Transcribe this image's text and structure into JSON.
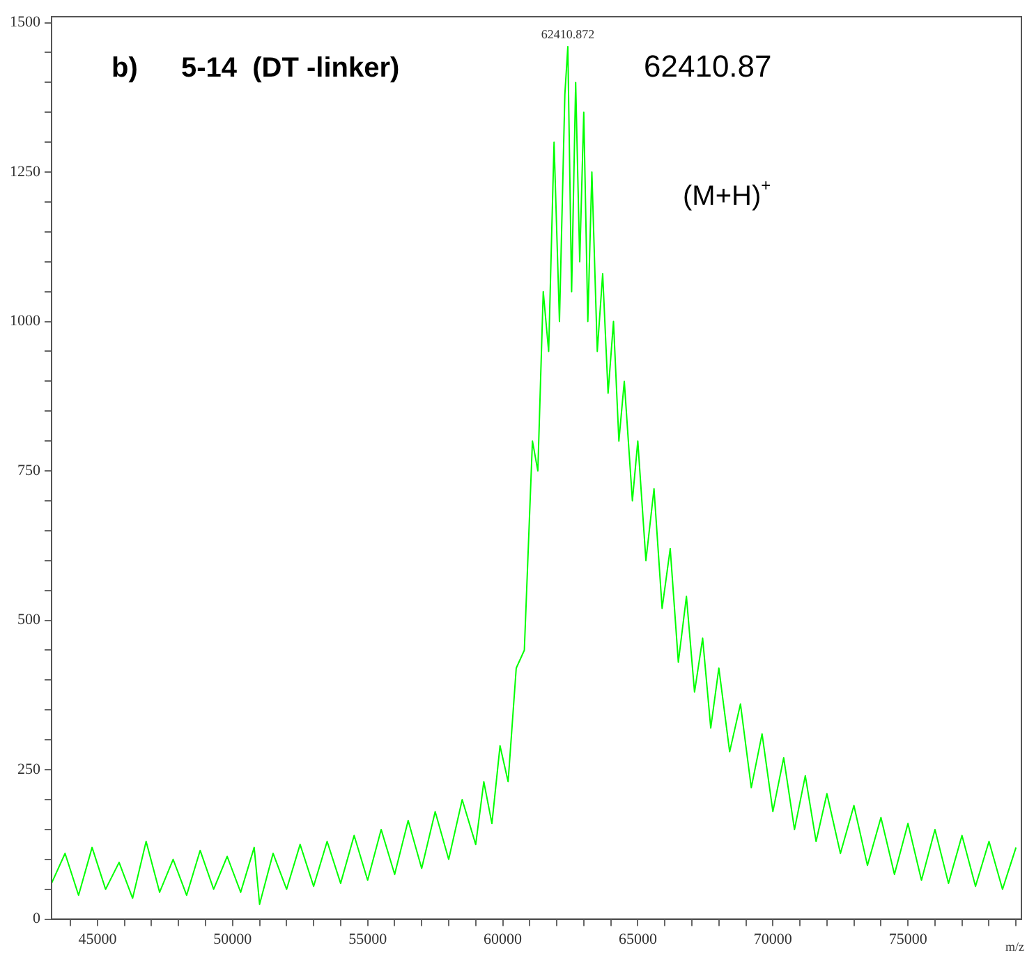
{
  "chart_data": {
    "type": "line",
    "xlabel": "m/z",
    "annotations": [
      "b)",
      "5-14  (DT -linker)",
      "62410.87",
      "(M+H)$^{+}$",
      {
        "text": "62410.872",
        "x": 62410,
        "y": 1460
      }
    ],
    "x": [
      43300,
      43800,
      44300,
      44800,
      45300,
      45800,
      46300,
      46800,
      47300,
      47800,
      48300,
      48800,
      49300,
      49800,
      50300,
      50800,
      51000,
      51500,
      52000,
      52500,
      53000,
      53500,
      54000,
      54500,
      55000,
      55500,
      56000,
      56500,
      57000,
      57500,
      58000,
      58500,
      59000,
      59300,
      59600,
      59900,
      60200,
      60500,
      60800,
      61100,
      61300,
      61500,
      61700,
      61900,
      62100,
      62300,
      62410,
      62550,
      62700,
      62850,
      63000,
      63150,
      63300,
      63500,
      63700,
      63900,
      64100,
      64300,
      64500,
      64800,
      65000,
      65300,
      65600,
      65900,
      66200,
      66500,
      66800,
      67100,
      67400,
      67700,
      68000,
      68400,
      68800,
      69200,
      69600,
      70000,
      70400,
      70800,
      71200,
      71600,
      72000,
      72500,
      73000,
      73500,
      74000,
      74500,
      75000,
      75500,
      76000,
      76500,
      77000,
      77500,
      78000,
      78500,
      79000
    ],
    "series": [
      {
        "color": "#00ff00",
        "values": [
          60,
          110,
          40,
          120,
          50,
          95,
          35,
          130,
          45,
          100,
          40,
          115,
          50,
          105,
          45,
          120,
          25,
          110,
          50,
          125,
          55,
          130,
          60,
          140,
          65,
          150,
          75,
          165,
          85,
          180,
          100,
          200,
          125,
          230,
          160,
          290,
          230,
          420,
          450,
          800,
          750,
          1050,
          950,
          1300,
          1000,
          1380,
          1460,
          1050,
          1400,
          1100,
          1350,
          1000,
          1250,
          950,
          1080,
          880,
          1000,
          800,
          900,
          700,
          800,
          600,
          720,
          520,
          620,
          430,
          540,
          380,
          470,
          320,
          420,
          280,
          360,
          220,
          310,
          180,
          270,
          150,
          240,
          130,
          210,
          110,
          190,
          90,
          170,
          75,
          160,
          65,
          150,
          60,
          140,
          55,
          130,
          50,
          120
        ]
      }
    ],
    "xlim": [
      43300,
      79200
    ],
    "xticks": [
      {
        "value": 44000,
        "label": null
      },
      {
        "value": 45000,
        "label": "45000"
      },
      {
        "value": 46000,
        "label": null
      },
      {
        "value": 47000,
        "label": null
      },
      {
        "value": 48000,
        "label": null
      },
      {
        "value": 49000,
        "label": null
      },
      {
        "value": 50000,
        "label": "50000"
      },
      {
        "value": 51000,
        "label": null
      },
      {
        "value": 52000,
        "label": null
      },
      {
        "value": 53000,
        "label": null
      },
      {
        "value": 54000,
        "label": null
      },
      {
        "value": 55000,
        "label": "55000"
      },
      {
        "value": 56000,
        "label": null
      },
      {
        "value": 57000,
        "label": null
      },
      {
        "value": 58000,
        "label": null
      },
      {
        "value": 59000,
        "label": null
      },
      {
        "value": 60000,
        "label": "60000"
      },
      {
        "value": 61000,
        "label": null
      },
      {
        "value": 62000,
        "label": null
      },
      {
        "value": 63000,
        "label": null
      },
      {
        "value": 64000,
        "label": null
      },
      {
        "value": 65000,
        "label": "65000"
      },
      {
        "value": 66000,
        "label": null
      },
      {
        "value": 67000,
        "label": null
      },
      {
        "value": 68000,
        "label": null
      },
      {
        "value": 69000,
        "label": null
      },
      {
        "value": 70000,
        "label": "70000"
      },
      {
        "value": 71000,
        "label": null
      },
      {
        "value": 72000,
        "label": null
      },
      {
        "value": 73000,
        "label": null
      },
      {
        "value": 74000,
        "label": null
      },
      {
        "value": 75000,
        "label": "75000"
      },
      {
        "value": 76000,
        "label": null
      },
      {
        "value": 77000,
        "label": null
      },
      {
        "value": 78000,
        "label": null
      },
      {
        "value": 79000,
        "label": null
      }
    ],
    "ylim": [
      0,
      1510
    ],
    "yticks": [
      0,
      {
        "value": 50,
        "label": null
      },
      {
        "value": 100,
        "label": null
      },
      {
        "value": 150,
        "label": null
      },
      {
        "value": 200,
        "label": null
      },
      250,
      {
        "value": 300,
        "label": null
      },
      {
        "value": 350,
        "label": null
      },
      {
        "value": 400,
        "label": null
      },
      {
        "value": 450,
        "label": null
      },
      500,
      {
        "value": 550,
        "label": null
      },
      {
        "value": 600,
        "label": null
      },
      {
        "value": 650,
        "label": null
      },
      {
        "value": 700,
        "label": null
      },
      750,
      {
        "value": 800,
        "label": null
      },
      {
        "value": 850,
        "label": null
      },
      {
        "value": 900,
        "label": null
      },
      {
        "value": 950,
        "label": null
      },
      1000,
      {
        "value": 1050,
        "label": null
      },
      {
        "value": 1100,
        "label": null
      },
      {
        "value": 1150,
        "label": null
      },
      {
        "value": 1200,
        "label": null
      },
      1250,
      {
        "value": 1300,
        "label": null
      },
      {
        "value": 1350,
        "label": null
      },
      {
        "value": 1400,
        "label": null
      },
      {
        "value": 1450,
        "label": null
      },
      1500
    ],
    "grid": false,
    "legend": false,
    "marker": "none",
    "line_style": "solid"
  }
}
